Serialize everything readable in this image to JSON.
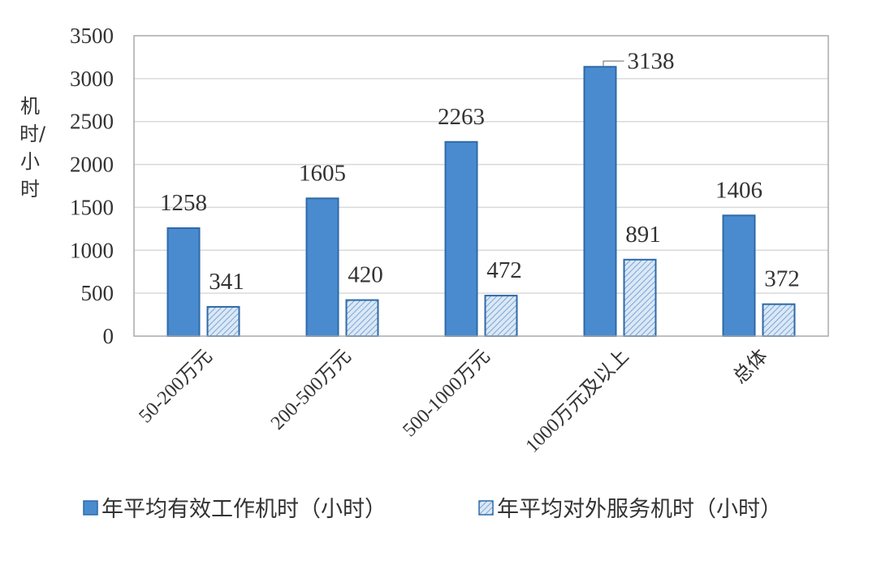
{
  "chart_data": {
    "type": "bar",
    "title": "",
    "xlabel": "",
    "ylabel": "机时/小时",
    "ylim": [
      0,
      3500
    ],
    "yticks": [
      0,
      500,
      1000,
      1500,
      2000,
      2500,
      3000,
      3500
    ],
    "grid": true,
    "legend_position": "bottom",
    "categories": [
      "50-200万元",
      "200-500万元",
      "500-1000万元",
      "1000万元及以上",
      "总体"
    ],
    "series": [
      {
        "name": "年平均有效工作机时（小时）",
        "values": [
          1258,
          1605,
          2263,
          3138,
          1406
        ],
        "color": "#4a8bd0",
        "pattern": "solid"
      },
      {
        "name": "年平均对外服务机时（小时）",
        "values": [
          341,
          420,
          472,
          891,
          372
        ],
        "color": "#2e6aa8",
        "pattern": "hatched"
      }
    ]
  }
}
